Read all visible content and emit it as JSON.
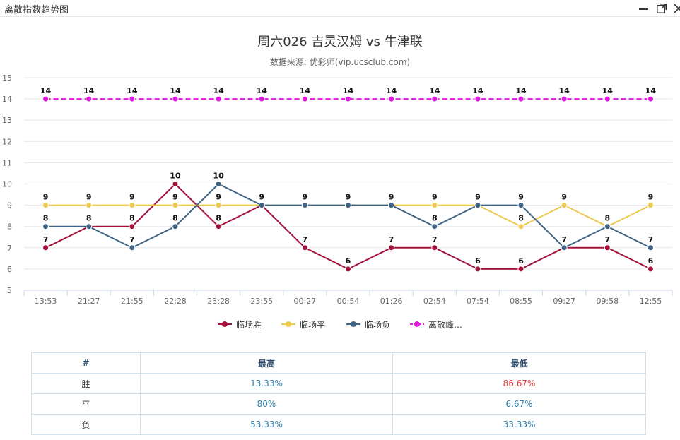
{
  "window": {
    "title": "离散指数趋势图"
  },
  "chart_data": {
    "type": "line",
    "title": "周六026 吉灵汉姆 vs 牛津联",
    "subtitle": "数据来源: 优彩师(vip.ucsclub.com)",
    "categories": [
      "13:53",
      "21:27",
      "21:55",
      "22:28",
      "23:28",
      "23:55",
      "00:27",
      "00:54",
      "01:26",
      "02:54",
      "07:54",
      "08:55",
      "09:27",
      "09:58",
      "12:55"
    ],
    "ylim": [
      5,
      15
    ],
    "yticks": [
      5,
      6,
      7,
      8,
      9,
      10,
      11,
      12,
      13,
      14,
      15
    ],
    "grid": true,
    "legend_position": "bottom",
    "series": [
      {
        "name": "临场胜",
        "color": "#a3123a",
        "dashed": false,
        "values": [
          7,
          8,
          8,
          10,
          8,
          9,
          7,
          6,
          7,
          7,
          6,
          6,
          7,
          7,
          6
        ]
      },
      {
        "name": "临场平",
        "color": "#ecca52",
        "dashed": false,
        "values": [
          9,
          9,
          9,
          9,
          9,
          9,
          9,
          9,
          9,
          9,
          9,
          8,
          9,
          8,
          9
        ]
      },
      {
        "name": "临场负",
        "color": "#3f6485",
        "dashed": false,
        "values": [
          8,
          8,
          7,
          8,
          10,
          9,
          9,
          9,
          9,
          8,
          9,
          9,
          7,
          8,
          7
        ]
      },
      {
        "name": "离散峰…",
        "color": "#e21be2",
        "dashed": true,
        "values": [
          14,
          14,
          14,
          14,
          14,
          14,
          14,
          14,
          14,
          14,
          14,
          14,
          14,
          14,
          14
        ]
      }
    ],
    "point_labels": [
      [
        14,
        14,
        14,
        14,
        14,
        14,
        14,
        14,
        14,
        14,
        14,
        14,
        14,
        14,
        14
      ],
      [
        9,
        9,
        9,
        10,
        10,
        9,
        9,
        9,
        9,
        9,
        9,
        9,
        9,
        null,
        9
      ],
      [
        8,
        8,
        8,
        9,
        9,
        null,
        null,
        null,
        null,
        null,
        null,
        null,
        null,
        null,
        null
      ],
      [
        null,
        null,
        7,
        8,
        8,
        null,
        7,
        6,
        7,
        8,
        6,
        8,
        7,
        8,
        7
      ],
      [
        7,
        null,
        null,
        null,
        null,
        null,
        null,
        null,
        null,
        7,
        null,
        6,
        null,
        7,
        6
      ]
    ]
  },
  "stats_table": {
    "headers": [
      "#",
      "最高",
      "最低"
    ],
    "rows": [
      {
        "label": "胜",
        "high": "13.33%",
        "low": "86.67%"
      },
      {
        "label": "平",
        "high": "80%",
        "low": "6.67%"
      },
      {
        "label": "负",
        "high": "53.33%",
        "low": "33.33%"
      }
    ]
  }
}
